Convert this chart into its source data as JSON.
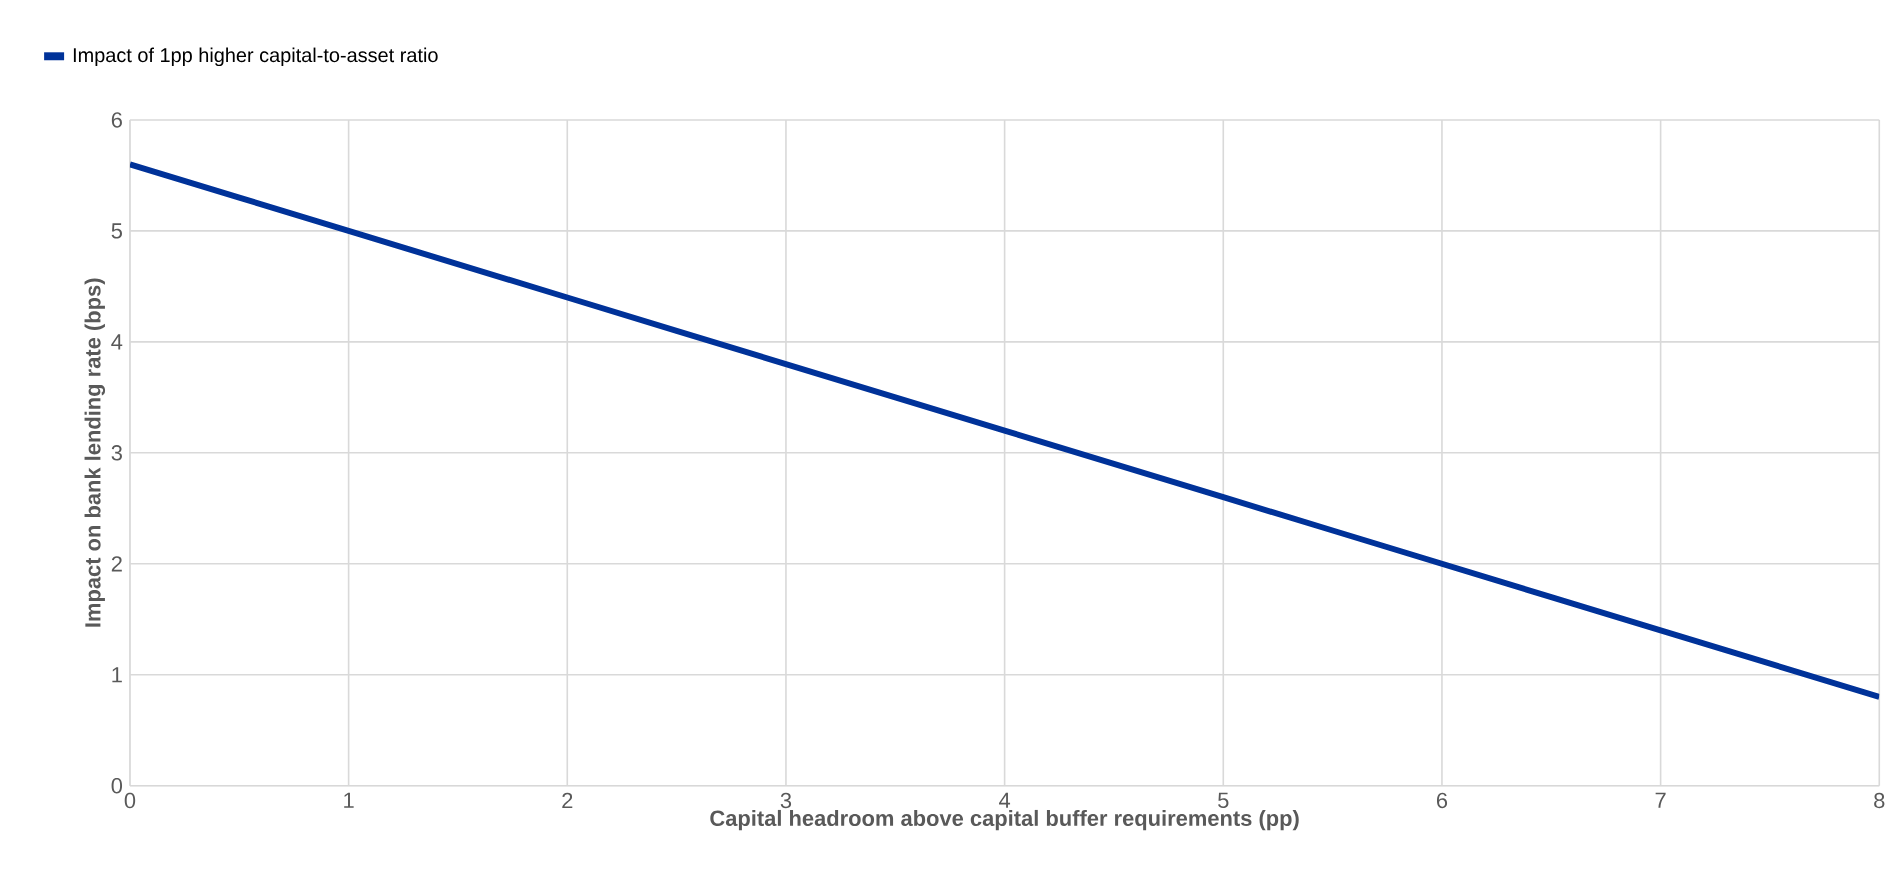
{
  "chart_data": {
    "type": "line",
    "xlabel": "Capital headroom above capital buffer requirements (pp)",
    "ylabel": "Impact on bank lending rate (bps)",
    "x": [
      0,
      0.5,
      1,
      1.5,
      2,
      2.5,
      3,
      3.5,
      4,
      4.5,
      5,
      5.5,
      6,
      6.5,
      7,
      7.5,
      8
    ],
    "series": [
      {
        "name": "Impact of 1pp higher capital-to-asset ratio",
        "color": "#003299",
        "values": [
          5.6,
          5.3,
          5.0,
          4.7,
          4.4,
          4.1,
          3.8,
          3.5,
          3.2,
          2.9,
          2.6,
          2.3,
          2.0,
          1.7,
          1.4,
          1.1,
          0.8
        ]
      }
    ],
    "xlim": [
      0,
      8
    ],
    "ylim": [
      0,
      6
    ],
    "xticks": [
      0,
      1,
      2,
      3,
      4,
      5,
      6,
      7,
      8
    ],
    "yticks": [
      0,
      1,
      2,
      3,
      4,
      5,
      6
    ],
    "grid": true,
    "legend": "top left",
    "marker": "none",
    "line_style": "solid"
  }
}
